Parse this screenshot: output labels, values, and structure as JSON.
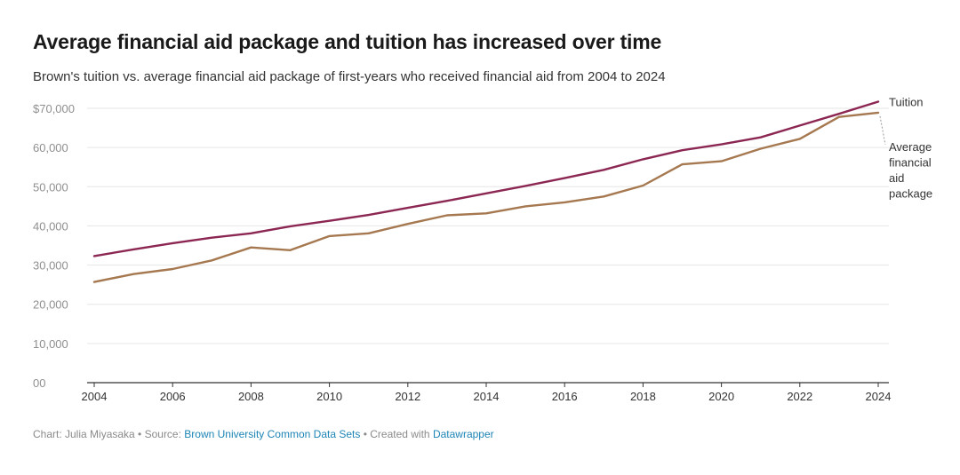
{
  "title": "Average financial aid package and tuition has increased over time",
  "subtitle": "Brown's tuition vs. average financial aid package of first-years who received financial aid from 2004 to 2024",
  "footer": {
    "chart_prefix": "Chart: Julia Miyasaka",
    "sep1": " • Source: ",
    "source": "Brown University Common Data Sets",
    "sep2": " • Created with ",
    "tool": "Datawrapper"
  },
  "colors": {
    "tuition": "#8b2752",
    "aid": "#a57850",
    "grid": "#e6e6e6",
    "axis": "#333333"
  },
  "chart_data": {
    "type": "line",
    "xlim": [
      2004,
      2024
    ],
    "ylim": [
      0,
      70000
    ],
    "x_ticks": [
      "2004",
      "2006",
      "2008",
      "2010",
      "2012",
      "2014",
      "2016",
      "2018",
      "2020",
      "2022",
      "2024"
    ],
    "y_ticks": [
      {
        "value": 70000,
        "label": "$70,000"
      },
      {
        "value": 60000,
        "label": "60,000"
      },
      {
        "value": 50000,
        "label": "50,000"
      },
      {
        "value": 40000,
        "label": "40,000"
      },
      {
        "value": 30000,
        "label": "30,000"
      },
      {
        "value": 20000,
        "label": "20,000"
      },
      {
        "value": 10000,
        "label": "10,000"
      },
      {
        "value": 0,
        "label": "00"
      }
    ],
    "x": [
      2004,
      2005,
      2006,
      2007,
      2008,
      2009,
      2010,
      2011,
      2012,
      2013,
      2014,
      2015,
      2016,
      2017,
      2018,
      2019,
      2020,
      2021,
      2022,
      2023,
      2024
    ],
    "series": [
      {
        "name": "Tuition",
        "key": "tuition",
        "values": [
          32300,
          34000,
          35600,
          37000,
          38100,
          39900,
          41300,
          42800,
          44600,
          46400,
          48300,
          50200,
          52200,
          54300,
          57000,
          59300,
          60800,
          62600,
          65600,
          68600,
          71700
        ]
      },
      {
        "name": "Average financial aid package",
        "key": "aid",
        "label_lines": [
          "Average",
          "financial",
          "aid",
          "package"
        ],
        "values": [
          25700,
          27700,
          29000,
          31200,
          34500,
          33800,
          37400,
          38100,
          40500,
          42700,
          43200,
          45000,
          46000,
          47500,
          50300,
          55700,
          56500,
          59700,
          62200,
          67800,
          68900
        ]
      }
    ]
  }
}
